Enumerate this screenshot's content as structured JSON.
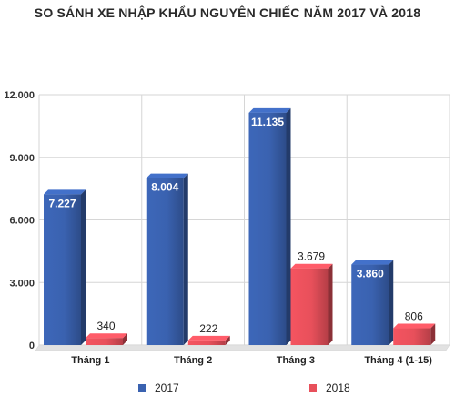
{
  "chart_data": {
    "type": "bar",
    "title": "SO SÁNH XE NHẬP KHẨU NGUYÊN CHIẾC NĂM 2017 VÀ 2018",
    "categories": [
      "Tháng 1",
      "Tháng 2",
      "Tháng 3",
      "Tháng 4 (1-15)"
    ],
    "series": [
      {
        "name": "2017",
        "values": [
          7227,
          8004,
          11135,
          3860
        ],
        "labels": [
          "7.227",
          "8.004",
          "11.135",
          "3.860"
        ],
        "color": "#3a62b0"
      },
      {
        "name": "2018",
        "values": [
          340,
          222,
          3679,
          806
        ],
        "labels": [
          "340",
          "222",
          "3.679",
          "806"
        ],
        "color": "#e8505b"
      }
    ],
    "ylim": [
      0,
      12000
    ],
    "yticks": [
      0,
      3000,
      6000,
      9000,
      12000
    ],
    "ytick_labels": [
      "0",
      "3.000",
      "6.000",
      "9.000",
      "12.000"
    ],
    "xlabel": "",
    "ylabel": "",
    "grid": true,
    "legend_position": "bottom"
  }
}
